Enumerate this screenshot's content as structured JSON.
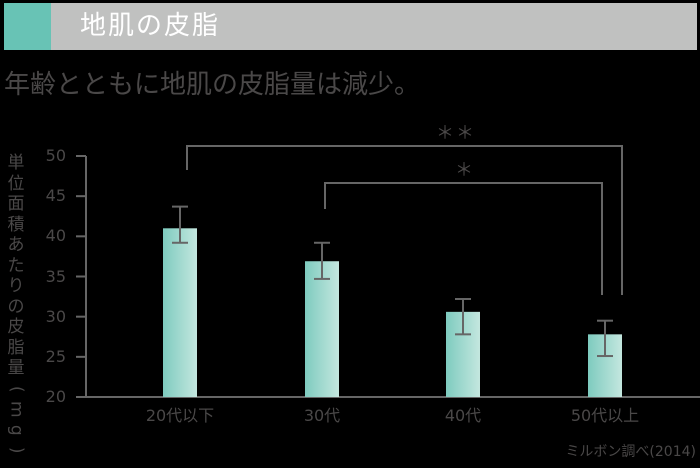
{
  "header": {
    "title": "地肌の皮脂",
    "accent_color": "#68c3b5",
    "band_color": "#c0c1c0"
  },
  "subtitle": "年齢とともに地肌の皮脂量は減少。",
  "source": "ミルボン調べ(2014)",
  "significance": {
    "outer": "＊＊",
    "inner": "＊"
  },
  "chart_data": {
    "type": "bar",
    "title": "地肌の皮脂",
    "subtitle": "年齢とともに地肌の皮脂量は減少。",
    "xlabel": "",
    "ylabel": "単位面積あたりの皮脂量(mg)",
    "ylim": [
      20,
      50
    ],
    "yticks": [
      20,
      25,
      30,
      35,
      40,
      45,
      50
    ],
    "categories": [
      "20代以下",
      "30代",
      "40代",
      "50代以上"
    ],
    "values": [
      41.0,
      36.9,
      30.6,
      27.8
    ],
    "error_bars": [
      {
        "upper": 43.7,
        "lower": 39.2
      },
      {
        "upper": 39.2,
        "lower": 34.7
      },
      {
        "upper": 32.2,
        "lower": 27.8
      },
      {
        "upper": 29.5,
        "lower": 25.1
      }
    ],
    "annotations": [
      {
        "from": "20代以下",
        "to": "50代以上",
        "label": "＊＊"
      },
      {
        "from": "30代",
        "to": "50代以上",
        "label": "＊"
      }
    ],
    "grid": false,
    "legend": null,
    "source": "ミルボン調べ(2014)"
  }
}
